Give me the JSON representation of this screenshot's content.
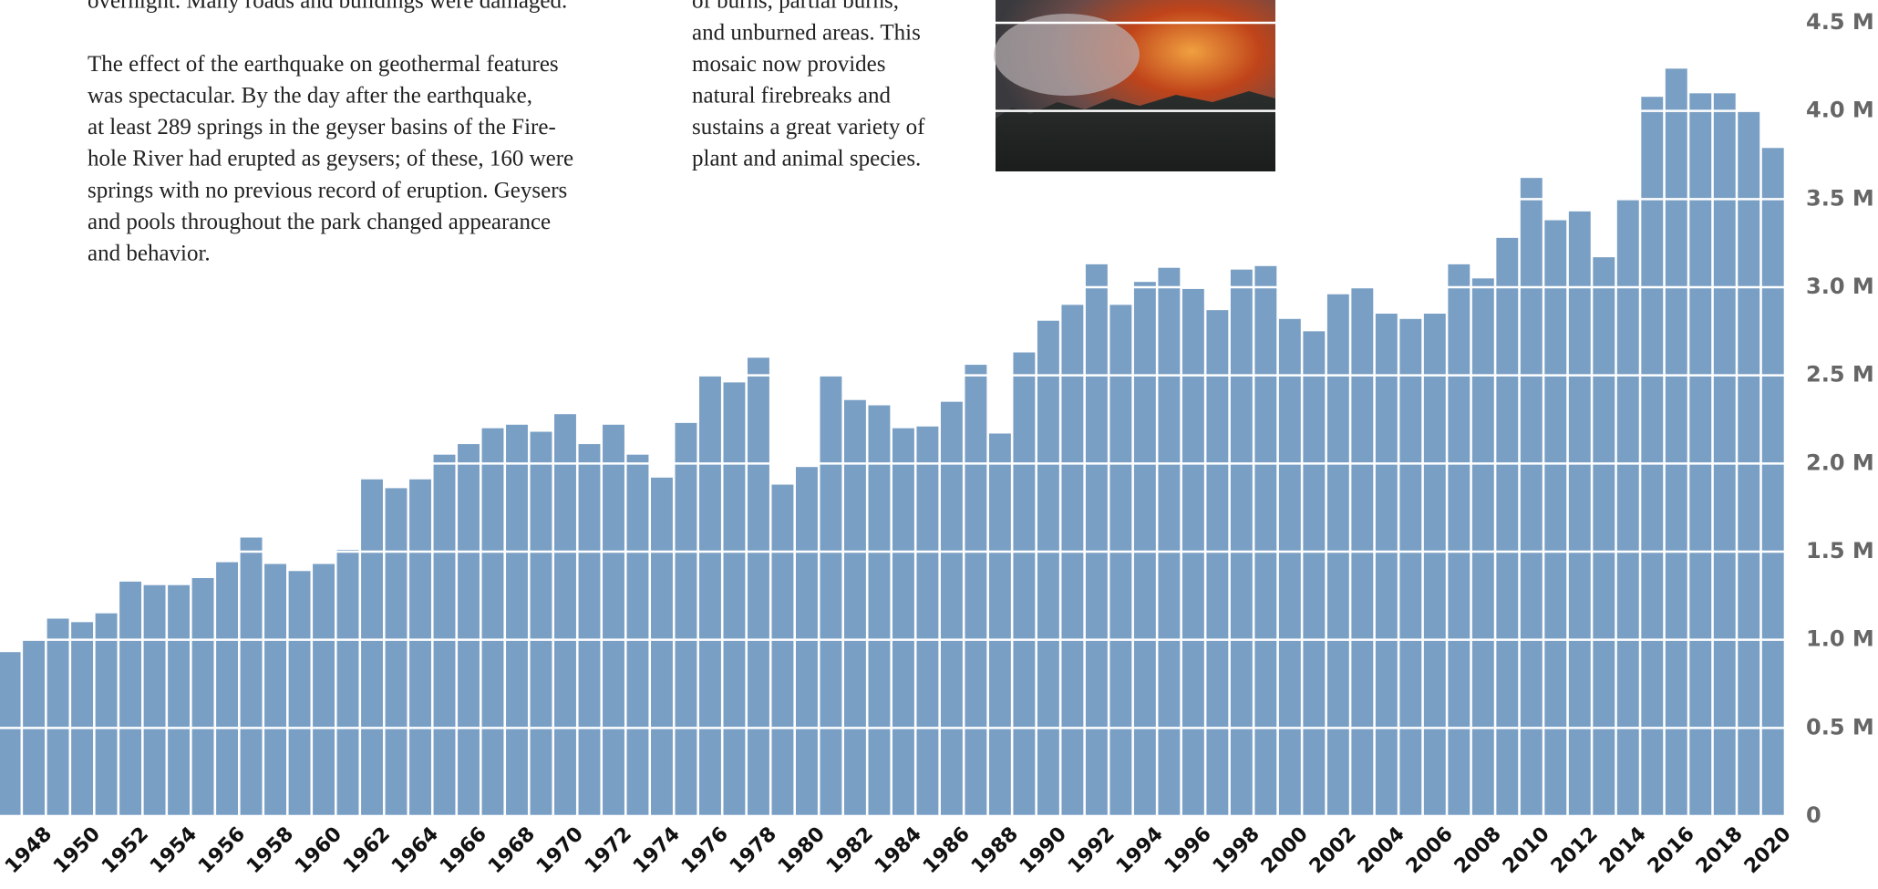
{
  "article": {
    "left_paragraphs": [
      [
        "overnight. Many roads and buildings were damaged."
      ],
      [
        "The effect of the earthquake on geothermal features",
        "was spectacular. By the day after the earthquake,",
        "at least 289 springs in the geyser basins of the Fire-",
        "hole River had erupted as geysers; of these, 160 were",
        "springs with no previous record of eruption. Geysers",
        "and pools throughout the park changed appearance",
        "and behavior."
      ]
    ],
    "right_paragraph": [
      "of burns, partial burns,",
      "and unburned areas. This",
      "mosaic now provides",
      "natural firebreaks and",
      "sustains a great variety of",
      "plant and animal species."
    ]
  },
  "chart_data": {
    "type": "bar",
    "color": "#7a9fc4",
    "grid": true,
    "x": [
      1947,
      1948,
      1949,
      1950,
      1951,
      1952,
      1953,
      1954,
      1955,
      1956,
      1957,
      1958,
      1959,
      1960,
      1961,
      1962,
      1963,
      1964,
      1965,
      1966,
      1967,
      1968,
      1969,
      1970,
      1971,
      1972,
      1973,
      1974,
      1975,
      1976,
      1977,
      1978,
      1979,
      1980,
      1981,
      1982,
      1983,
      1984,
      1985,
      1986,
      1987,
      1988,
      1989,
      1990,
      1991,
      1992,
      1993,
      1994,
      1995,
      1996,
      1997,
      1998,
      1999,
      2000,
      2001,
      2002,
      2003,
      2004,
      2005,
      2006,
      2007,
      2008,
      2009,
      2010,
      2011,
      2012,
      2013,
      2014,
      2015,
      2016,
      2017,
      2018,
      2019,
      2020
    ],
    "values": [
      0.93,
      1.0,
      1.12,
      1.1,
      1.15,
      1.33,
      1.31,
      1.31,
      1.35,
      1.44,
      1.58,
      1.43,
      1.39,
      1.43,
      1.51,
      1.91,
      1.86,
      1.91,
      2.05,
      2.11,
      2.2,
      2.22,
      2.18,
      2.28,
      2.11,
      2.22,
      2.05,
      1.92,
      2.23,
      2.5,
      2.46,
      2.6,
      1.88,
      1.98,
      2.5,
      2.36,
      2.33,
      2.2,
      2.21,
      2.35,
      2.56,
      2.17,
      2.63,
      2.81,
      2.9,
      3.13,
      2.9,
      3.03,
      3.11,
      2.99,
      2.87,
      3.1,
      3.12,
      2.82,
      2.75,
      2.96,
      3.0,
      2.85,
      2.82,
      2.85,
      3.13,
      3.05,
      3.28,
      3.62,
      3.38,
      3.43,
      3.17,
      3.5,
      4.08,
      4.24,
      4.1,
      4.1,
      4.0,
      3.79
    ],
    "xlim": [
      1946.6,
      2020.5
    ],
    "xticks": [
      1948,
      1950,
      1952,
      1954,
      1956,
      1958,
      1960,
      1962,
      1964,
      1966,
      1968,
      1970,
      1972,
      1974,
      1976,
      1978,
      1980,
      1982,
      1984,
      1986,
      1988,
      1990,
      1992,
      1994,
      1996,
      1998,
      2000,
      2002,
      2004,
      2006,
      2008,
      2010,
      2012,
      2014,
      2016,
      2018,
      2020
    ],
    "ylim": [
      0,
      4.5
    ],
    "yticks": [
      0,
      {
        "value": 0.5,
        "label": "0.5 M"
      },
      {
        "value": 1,
        "label": "1.0 M"
      },
      {
        "value": 1.5,
        "label": "1.5 M"
      },
      {
        "value": 2,
        "label": "2.0 M"
      },
      {
        "value": 2.5,
        "label": "2.5 M"
      },
      {
        "value": 3,
        "label": "3.0 M"
      },
      {
        "value": 3.5,
        "label": "3.5 M"
      },
      {
        "value": 4,
        "label": "4.0 M"
      },
      {
        "value": 4.5,
        "label": "4.5 M"
      }
    ]
  }
}
